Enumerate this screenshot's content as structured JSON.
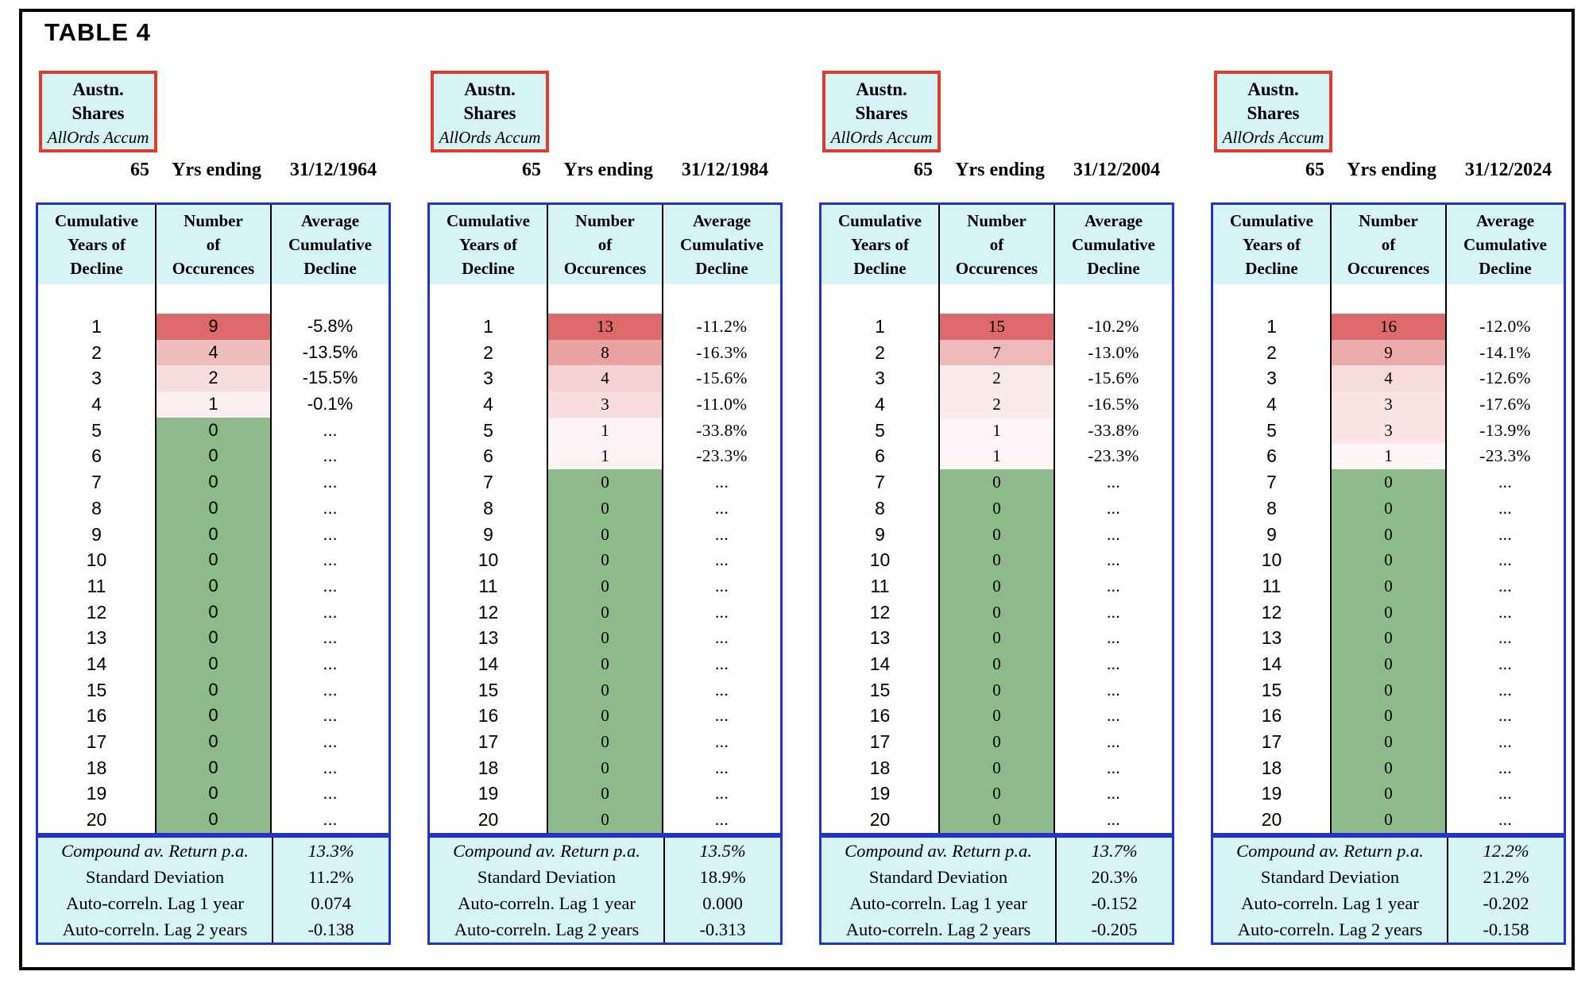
{
  "title": "TABLE 4",
  "colors": {
    "header_fill": "#d6f3f6",
    "table_border_blue": "#2334cb",
    "asset_box_border_red": "#e23b2e",
    "page_border_black": "#000000",
    "occurrence_max_fill_red": "#dd6a6a",
    "occurrence_zero_fill_green": "#8cba8a",
    "occurrence_min_fill_white": "#ffffff"
  },
  "column_headers": [
    [
      "Cumulative",
      "Years of",
      "Decline"
    ],
    [
      "Number",
      "of",
      "Occurences"
    ],
    [
      "Average",
      "Cumulative",
      "Decline"
    ]
  ],
  "stat_labels": [
    "Compound av. Return p.a.",
    "Standard Deviation",
    "Auto-correln. Lag 1 year",
    "Auto-correln. Lag 2 years"
  ],
  "panels": [
    {
      "asset": {
        "line1": "Austn.",
        "line2": "Shares",
        "line3": "AllOrds Accum"
      },
      "period": {
        "years": "65",
        "label": "Yrs ending",
        "date": "31/12/1964"
      },
      "cumulative_years": [
        1,
        2,
        3,
        4,
        5,
        6,
        7,
        8,
        9,
        10,
        11,
        12,
        13,
        14,
        15,
        16,
        17,
        18,
        19,
        20
      ],
      "occurrences": [
        9,
        4,
        2,
        1,
        0,
        0,
        0,
        0,
        0,
        0,
        0,
        0,
        0,
        0,
        0,
        0,
        0,
        0,
        0,
        0
      ],
      "avg_declines": [
        "-5.8%",
        "-13.5%",
        "-15.5%",
        "-0.1%",
        "...",
        "...",
        "...",
        "...",
        "...",
        "...",
        "...",
        "...",
        "...",
        "...",
        "...",
        "...",
        "...",
        "...",
        "...",
        "..."
      ],
      "stat_values": [
        "13.3%",
        "11.2%",
        "0.074",
        "-0.138"
      ]
    },
    {
      "asset": {
        "line1": "Austn.",
        "line2": "Shares",
        "line3": "AllOrds Accum"
      },
      "period": {
        "years": "65",
        "label": "Yrs ending",
        "date": "31/12/1984"
      },
      "cumulative_years": [
        1,
        2,
        3,
        4,
        5,
        6,
        7,
        8,
        9,
        10,
        11,
        12,
        13,
        14,
        15,
        16,
        17,
        18,
        19,
        20
      ],
      "occurrences": [
        13,
        8,
        4,
        3,
        1,
        1,
        0,
        0,
        0,
        0,
        0,
        0,
        0,
        0,
        0,
        0,
        0,
        0,
        0,
        0
      ],
      "avg_declines": [
        "-11.2%",
        "-16.3%",
        "-15.6%",
        "-11.0%",
        "-33.8%",
        "-23.3%",
        "...",
        "...",
        "...",
        "...",
        "...",
        "...",
        "...",
        "...",
        "...",
        "...",
        "...",
        "...",
        "...",
        "..."
      ],
      "stat_values": [
        "13.5%",
        "18.9%",
        "0.000",
        "-0.313"
      ]
    },
    {
      "asset": {
        "line1": "Austn.",
        "line2": "Shares",
        "line3": "AllOrds Accum"
      },
      "period": {
        "years": "65",
        "label": "Yrs ending",
        "date": "31/12/2004"
      },
      "cumulative_years": [
        1,
        2,
        3,
        4,
        5,
        6,
        7,
        8,
        9,
        10,
        11,
        12,
        13,
        14,
        15,
        16,
        17,
        18,
        19,
        20
      ],
      "occurrences": [
        15,
        7,
        2,
        2,
        1,
        1,
        0,
        0,
        0,
        0,
        0,
        0,
        0,
        0,
        0,
        0,
        0,
        0,
        0,
        0
      ],
      "avg_declines": [
        "-10.2%",
        "-13.0%",
        "-15.6%",
        "-16.5%",
        "-33.8%",
        "-23.3%",
        "...",
        "...",
        "...",
        "...",
        "...",
        "...",
        "...",
        "...",
        "...",
        "...",
        "...",
        "...",
        "...",
        "..."
      ],
      "stat_values": [
        "13.7%",
        "20.3%",
        "-0.152",
        "-0.205"
      ]
    },
    {
      "asset": {
        "line1": "Austn.",
        "line2": "Shares",
        "line3": "AllOrds Accum"
      },
      "period": {
        "years": "65",
        "label": "Yrs ending",
        "date": "31/12/2024"
      },
      "cumulative_years": [
        1,
        2,
        3,
        4,
        5,
        6,
        7,
        8,
        9,
        10,
        11,
        12,
        13,
        14,
        15,
        16,
        17,
        18,
        19,
        20
      ],
      "occurrences": [
        16,
        9,
        4,
        3,
        3,
        1,
        0,
        0,
        0,
        0,
        0,
        0,
        0,
        0,
        0,
        0,
        0,
        0,
        0,
        0
      ],
      "avg_declines": [
        "-12.0%",
        "-14.1%",
        "-12.6%",
        "-17.6%",
        "-13.9%",
        "-23.3%",
        "...",
        "...",
        "...",
        "...",
        "...",
        "...",
        "...",
        "...",
        "...",
        "...",
        "...",
        "...",
        "...",
        "..."
      ],
      "stat_values": [
        "12.2%",
        "21.2%",
        "-0.202",
        "-0.158"
      ]
    }
  ]
}
